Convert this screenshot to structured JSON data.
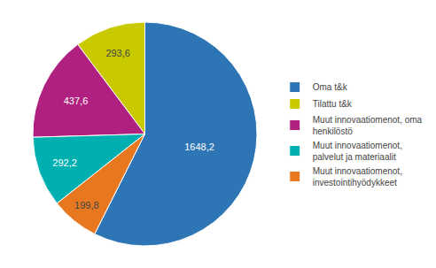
{
  "chart_data": {
    "type": "pie",
    "categories": [
      "Oma t&k",
      "Tilattu t&k",
      "Muut innovaatiomenot, oma\nhenkilöstö",
      "Muut innovaatiomenot,\npalvelut ja materiaalit",
      "Muut innovaatiomenot,\ninvestointihyödykkeet"
    ],
    "values": [
      1648.2,
      293.6,
      437.6,
      292.2,
      199.8
    ],
    "value_labels": [
      "1648,2",
      "293,6",
      "437,6",
      "292,2",
      "199,8"
    ],
    "colors": [
      "#2E75B6",
      "#C9C900",
      "#B02080",
      "#00B0B0",
      "#E87820"
    ],
    "data_labels": true,
    "legend": "right"
  }
}
